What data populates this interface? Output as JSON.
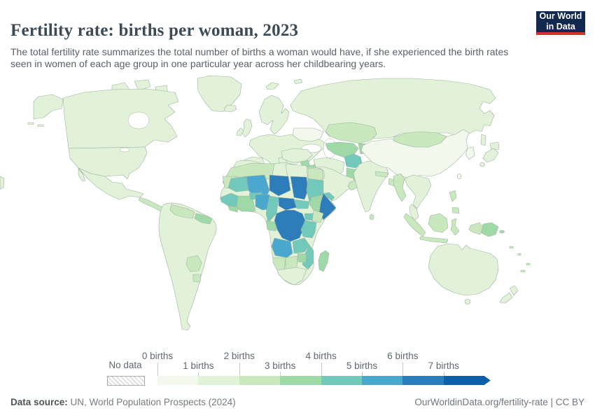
{
  "header": {
    "title": "Fertility rate: births per woman, 2023",
    "subtitle": "The total fertility rate summarizes the total number of births a woman would have, if she experienced the birth rates seen in women of each age group in one particular year across her childbearing years.",
    "logo": {
      "line1": "Our World",
      "line2": "in Data",
      "bg_color": "#10294d",
      "accent_color": "#cf342e"
    }
  },
  "palette": [
    "#f2f9ec",
    "#e1f2d8",
    "#c9e8bd",
    "#a0d9a8",
    "#72c8ba",
    "#4aa8cf",
    "#2d7dba",
    "#0d5fa7"
  ],
  "legend": {
    "no_data_label": "No data",
    "bins": [
      {
        "label": "0 births"
      },
      {
        "label": "1 births"
      },
      {
        "label": "2 births"
      },
      {
        "label": "3 births"
      },
      {
        "label": "4 births"
      },
      {
        "label": "5 births"
      },
      {
        "label": "6 births"
      },
      {
        "label": "7 births"
      }
    ]
  },
  "footer": {
    "source_label": "Data source:",
    "source_value": " UN, World Population Prospects (2024)",
    "credit": "OurWorldinData.org/fertility-rate | CC BY"
  },
  "chart_data": {
    "type": "heatmap",
    "variant": "world-choropleth",
    "title": "Fertility rate: births per woman, 2023",
    "unit": "births per woman",
    "legend_bins": [
      "0 births",
      "1 births",
      "2 births",
      "3 births",
      "4 births",
      "5 births",
      "6 births",
      "7 births"
    ],
    "no_data_style": "gray diagonal hatch",
    "regions": [
      {
        "name": "Canada",
        "value_bin": "1-2"
      },
      {
        "name": "United States",
        "value_bin": "1-2"
      },
      {
        "name": "Greenland",
        "value_bin": "1-2"
      },
      {
        "name": "Mexico",
        "value_bin": "1-2"
      },
      {
        "name": "Central America",
        "value_bin": "2-3"
      },
      {
        "name": "Venezuela",
        "value_bin": "2-3"
      },
      {
        "name": "Guyana/Suriname",
        "value_bin": "3-4"
      },
      {
        "name": "Brazil",
        "value_bin": "1-2"
      },
      {
        "name": "Bolivia",
        "value_bin": "2-3"
      },
      {
        "name": "Argentina",
        "value_bin": "1-2"
      },
      {
        "name": "Europe (most)",
        "value_bin": "1-2"
      },
      {
        "name": "Ukraine",
        "value_bin": "0-1"
      },
      {
        "name": "Russia",
        "value_bin": "1-2"
      },
      {
        "name": "Kazakhstan",
        "value_bin": "2-3"
      },
      {
        "name": "Uzbekistan/Turkmenistan",
        "value_bin": "3-4"
      },
      {
        "name": "Mongolia",
        "value_bin": "2-3"
      },
      {
        "name": "China",
        "value_bin": "0-1"
      },
      {
        "name": "Japan",
        "value_bin": "1-2"
      },
      {
        "name": "India",
        "value_bin": "1-2"
      },
      {
        "name": "Pakistan",
        "value_bin": "3-4"
      },
      {
        "name": "Afghanistan",
        "value_bin": "4-5"
      },
      {
        "name": "Iran",
        "value_bin": "1-2"
      },
      {
        "name": "Iraq",
        "value_bin": "3-4"
      },
      {
        "name": "Saudi Arabia",
        "value_bin": "1-2"
      },
      {
        "name": "Yemen",
        "value_bin": "4-5"
      },
      {
        "name": "Turkey",
        "value_bin": "1-2"
      },
      {
        "name": "Egypt",
        "value_bin": "2-3"
      },
      {
        "name": "Algeria/Morocco",
        "value_bin": "2-3"
      },
      {
        "name": "Mauritania",
        "value_bin": "4-5"
      },
      {
        "name": "Senegal/Guinea",
        "value_bin": "4-5"
      },
      {
        "name": "Mali",
        "value_bin": "5-6"
      },
      {
        "name": "Burkina Faso",
        "value_bin": "4-5"
      },
      {
        "name": "Niger",
        "value_bin": "6-7"
      },
      {
        "name": "Chad",
        "value_bin": "6-7"
      },
      {
        "name": "Sudan",
        "value_bin": "4-5"
      },
      {
        "name": "Nigeria",
        "value_bin": "5-6"
      },
      {
        "name": "Cameroon",
        "value_bin": "4-5"
      },
      {
        "name": "Central African Republic",
        "value_bin": "6-7"
      },
      {
        "name": "Ethiopia",
        "value_bin": "3-4"
      },
      {
        "name": "Somalia",
        "value_bin": "6-7"
      },
      {
        "name": "Kenya",
        "value_bin": "2-3"
      },
      {
        "name": "DR Congo",
        "value_bin": "6-7"
      },
      {
        "name": "Tanzania",
        "value_bin": "4-5"
      },
      {
        "name": "Angola",
        "value_bin": "5-6"
      },
      {
        "name": "Zambia",
        "value_bin": "4-5"
      },
      {
        "name": "Mozambique",
        "value_bin": "4-5"
      },
      {
        "name": "Madagascar",
        "value_bin": "3-4"
      },
      {
        "name": "Namibia/Botswana",
        "value_bin": "2-3"
      },
      {
        "name": "South Africa",
        "value_bin": "1-2"
      },
      {
        "name": "Myanmar",
        "value_bin": "2-3"
      },
      {
        "name": "Thailand/Vietnam",
        "value_bin": "1-2"
      },
      {
        "name": "Indonesia",
        "value_bin": "2-3"
      },
      {
        "name": "Philippines",
        "value_bin": "2-3"
      },
      {
        "name": "Papua New Guinea",
        "value_bin": "3-4"
      },
      {
        "name": "Australia",
        "value_bin": "1-2"
      },
      {
        "name": "New Zealand",
        "value_bin": "1-2"
      }
    ]
  }
}
